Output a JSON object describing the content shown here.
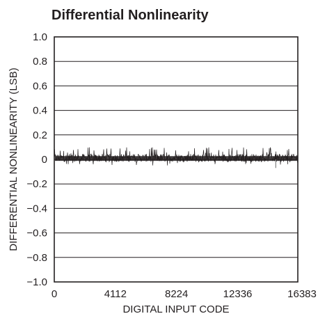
{
  "chart_data": {
    "type": "line",
    "title": "Differential Nonlinearity",
    "xlabel": "DIGITAL INPUT CODE",
    "ylabel": "DIFFERENTIAL NONLINEARITY (LSB)",
    "xlim": [
      0,
      16383
    ],
    "ylim": [
      -1.0,
      1.0
    ],
    "x_ticks": [
      0,
      4112,
      8224,
      12336,
      16383
    ],
    "x_tick_labels": [
      "0",
      "4112",
      "8224",
      "12336",
      "16383"
    ],
    "y_ticks": [
      1.0,
      0.8,
      0.6,
      0.4,
      0.2,
      0,
      -0.2,
      -0.4,
      -0.6,
      -0.8,
      -1.0
    ],
    "y_tick_labels": [
      "1.0",
      "0.8",
      "0.6",
      "0.4",
      "0.2",
      "0",
      "−0.2",
      "−0.4",
      "−0.6",
      "−0.8",
      "−1.0"
    ],
    "grid": true,
    "series": [
      {
        "band_low": -0.02,
        "band_high": 0.045,
        "spike_max": 0.1,
        "spike_min": -0.07,
        "outlier": {
          "x": 14900,
          "y": -0.07
        },
        "color": "#231f20"
      }
    ]
  }
}
